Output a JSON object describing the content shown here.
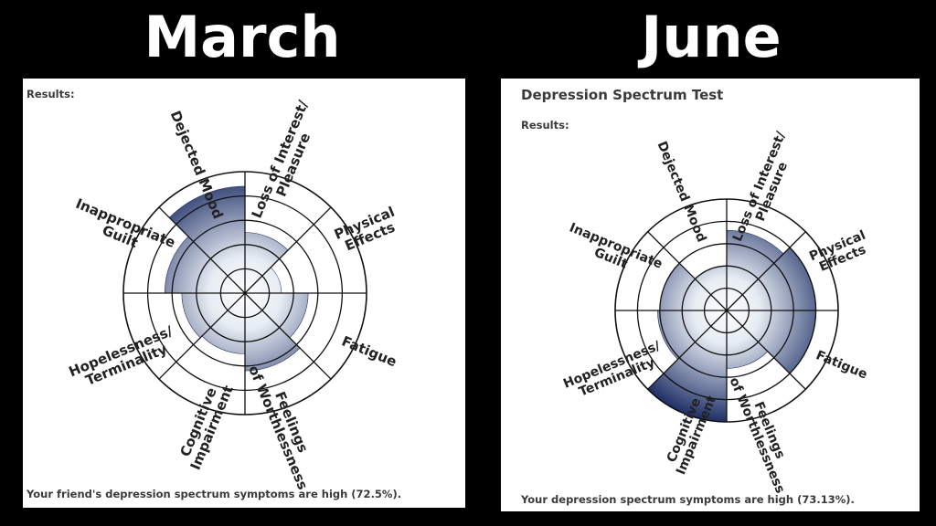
{
  "headings": {
    "left": "March",
    "right": "June"
  },
  "left_panel": {
    "results_label": "Results:",
    "footer": "Your friend's depression spectrum symptoms are high (72.5%)."
  },
  "right_panel": {
    "title": "Depression Spectrum Test",
    "results_label": "Results:",
    "footer": "Your depression spectrum symptoms are high (73.13%)."
  },
  "chart_data": [
    {
      "type": "polar-area",
      "title": "March",
      "radial_levels": 5,
      "categories": [
        "Loss of Interest/ Pleasure",
        "Physical Effects",
        "Fatigue",
        "Feelings of Worthlessness",
        "Cognitive Impairment",
        "Hopelessness/ Terminality",
        "Inappropriate Guilt",
        "Dejected Mood"
      ],
      "values": [
        2.5,
        1.5,
        2.6,
        3.2,
        2.5,
        2.6,
        3.3,
        4.4
      ],
      "colors": {
        "fill_light": "#e6ecf3",
        "fill_dark": "#1f2f66",
        "grid": "#111111"
      }
    },
    {
      "type": "polar-area",
      "title": "June",
      "radial_levels": 5,
      "categories": [
        "Loss of Interest/ Pleasure",
        "Physical Effects",
        "Fatigue",
        "Feelings of Worthlessness",
        "Cognitive Impairment",
        "Hopelessness/ Terminality",
        "Inappropriate Guilt",
        "Dejected Mood"
      ],
      "values": [
        3.6,
        4.0,
        4.0,
        2.6,
        5.0,
        3.1,
        3.0,
        2.0
      ],
      "colors": {
        "fill_light": "#e6ecf3",
        "fill_dark": "#1f2f66",
        "grid": "#111111"
      }
    }
  ]
}
